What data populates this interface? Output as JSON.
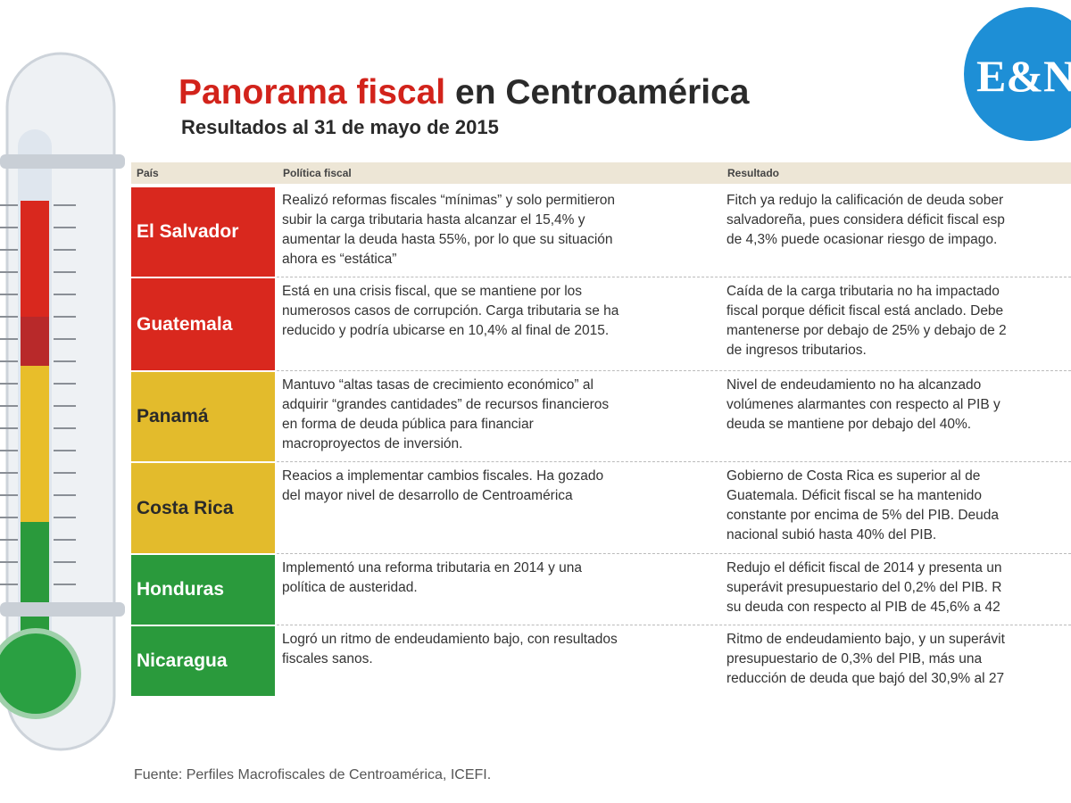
{
  "header": {
    "title_highlight": "Panorama fiscal",
    "title_rest": "en Centroamérica",
    "subtitle": "Resultados al 31 de mayo de 2015",
    "logo": "E&N"
  },
  "table": {
    "columns": [
      "País",
      "Política fiscal",
      "Resultado"
    ],
    "rows": [
      {
        "country": "El Salvador",
        "policy": [
          "Realizó reformas fiscales “mínimas” y solo permitieron",
          "subir la carga tributaria hasta alcanzar el 15,4% y",
          "aumentar la deuda hasta 55%, por lo que su situación",
          "ahora es “estática”"
        ],
        "result": [
          "Fitch ya redujo la calificación de deuda sober",
          "salvadoreña, pues considera déficit fiscal esp",
          "de 4,3% puede ocasionar riesgo de impago."
        ]
      },
      {
        "country": "Guatemala",
        "policy": [
          "Está en una crisis fiscal, que se mantiene por los",
          "numerosos casos de corrupción. Carga tributaria se ha",
          "reducido y podría ubicarse en 10,4% al final de 2015."
        ],
        "result": [
          "Caída de la carga tributaria no ha impactado",
          "fiscal porque déficit fiscal está anclado. Debe",
          "mantenerse por debajo de 25% y debajo de 2",
          "de ingresos tributarios."
        ]
      },
      {
        "country": "Panamá",
        "policy": [
          "Mantuvo “altas tasas de crecimiento económico” al",
          "adquirir “grandes cantidades” de recursos financieros",
          "en forma de deuda pública para financiar",
          "macroproyectos de inversión."
        ],
        "result": [
          "Nivel de endeudamiento no ha alcanzado",
          "volúmenes alarmantes con respecto al PIB y",
          "deuda se mantiene por debajo del 40%."
        ]
      },
      {
        "country": "Costa Rica",
        "policy": [
          "Reacios a implementar cambios fiscales. Ha gozado",
          "del mayor nivel de desarrollo de Centroamérica"
        ],
        "result": [
          "Gobierno de Costa Rica es superior al de",
          "Guatemala. Déficit fiscal se ha mantenido",
          "constante por encima de 5% del PIB. Deuda",
          "nacional subió hasta 40% del PIB."
        ]
      },
      {
        "country": "Honduras",
        "policy": [
          "Implementó una reforma tributaria en 2014 y una",
          "política de austeridad."
        ],
        "result": [
          "Redujo el déficit fiscal de 2014 y presenta un",
          "superávit presupuestario del 0,2% del PIB. R",
          "su deuda con respecto al PIB de 45,6% a 42"
        ]
      },
      {
        "country": "Nicaragua",
        "policy": [
          "Logró un ritmo de endeudamiento bajo, con resultados",
          "fiscales sanos."
        ],
        "result": [
          "Ritmo de endeudamiento bajo, y un superávit",
          "presupuestario de 0,3% del PIB, más una",
          "reducción de deuda que bajó del 30,9% al 27"
        ]
      }
    ]
  },
  "footer": {
    "source": "Fuente: Perfiles Macrofiscales de Centroamérica, ICEFI."
  }
}
